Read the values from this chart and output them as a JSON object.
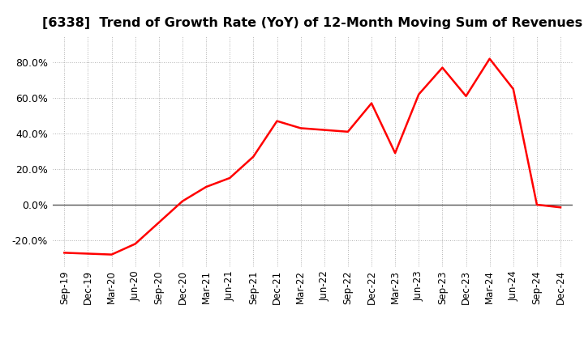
{
  "title": "[6338]  Trend of Growth Rate (YoY) of 12-Month Moving Sum of Revenues",
  "x_labels": [
    "Sep-19",
    "Dec-19",
    "Mar-20",
    "Jun-20",
    "Sep-20",
    "Dec-20",
    "Mar-21",
    "Jun-21",
    "Sep-21",
    "Dec-21",
    "Mar-22",
    "Jun-22",
    "Sep-22",
    "Dec-22",
    "Mar-23",
    "Jun-23",
    "Sep-23",
    "Dec-23",
    "Mar-24",
    "Jun-24",
    "Sep-24",
    "Dec-24"
  ],
  "y_values": [
    -27.0,
    -27.5,
    -28.0,
    -22.0,
    -10.0,
    2.0,
    10.0,
    15.0,
    27.0,
    47.0,
    43.0,
    42.0,
    41.0,
    57.0,
    29.0,
    62.0,
    77.0,
    61.0,
    82.0,
    65.0,
    0.0,
    -1.5
  ],
  "line_color": "#ff0000",
  "line_width": 1.8,
  "ylim": [
    -35,
    95
  ],
  "yticks": [
    -20,
    0,
    20,
    40,
    60,
    80
  ],
  "background_color": "#ffffff",
  "grid_color": "#b0b0b0",
  "zero_line_color": "#555555",
  "title_fontsize": 11.5,
  "tick_fontsize": 8.5,
  "ytick_fontsize": 9
}
